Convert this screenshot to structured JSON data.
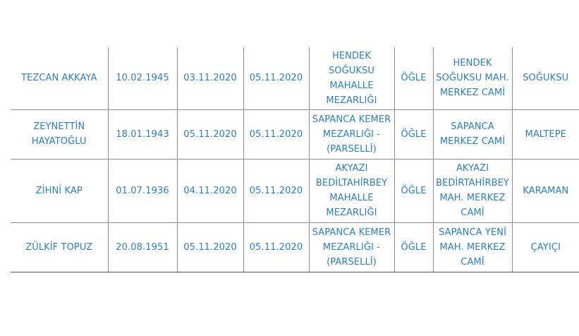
{
  "table": {
    "rows": [
      {
        "name": "TEZCAN AKKAYA",
        "birth_date": "10.02.1945",
        "death_date": "03.11.2020",
        "burial_date": "05.11.2020",
        "cemetery": "HENDEK\nSOĞUKSU\nMAHALLE\nMEZARLIĞI",
        "prayer_time": "ÖĞLE",
        "mosque": "HENDEK\nSOĞUKSU MAH.\nMERKEZ CAMİ",
        "neighborhood": "SOĞUKSU"
      },
      {
        "name": "ZEYNETTİN\nHAYATOĞLU",
        "birth_date": "18.01.1943",
        "death_date": "05.11.2020",
        "burial_date": "05.11.2020",
        "cemetery": "SAPANCA KEMER\nMEZARLIĞI -\n(PARSELLİ)",
        "prayer_time": "ÖĞLE",
        "mosque": "SAPANCA\nMERKEZ CAMİ",
        "neighborhood": "MALTEPE"
      },
      {
        "name": "ZİHNİ KAP",
        "birth_date": "01.07.1936",
        "death_date": "04.11.2020",
        "burial_date": "05.11.2020",
        "cemetery": "AKYAZI\nBEDİLTAHİRBEY\nMAHALLE\nMEZARLIĞI",
        "prayer_time": "ÖĞLE",
        "mosque": "AKYAZI\nBEDİRTAHİRBEY\nMAH. MERKEZ\nCAMİ",
        "neighborhood": "KARAMAN"
      },
      {
        "name": "ZÜLKİF TOPUZ",
        "birth_date": "20.08.1951",
        "death_date": "05.11.2020",
        "burial_date": "05.11.2020",
        "cemetery": "SAPANCA KEMER\nMEZARLIĞI -\n(PARSELLİ)",
        "prayer_time": "ÖĞLE",
        "mosque": "SAPANCA YENİ\nMAH. MERKEZ\nCAMİ",
        "neighborhood": "ÇAYIÇI"
      }
    ]
  },
  "colors": {
    "text": "#2a7fbf",
    "border": "#8a8a8a"
  }
}
